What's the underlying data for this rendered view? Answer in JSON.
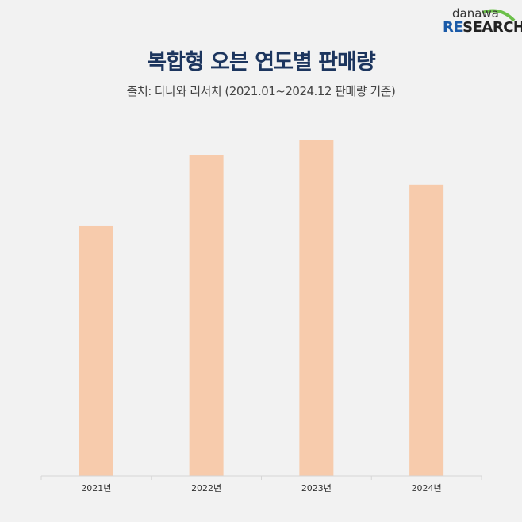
{
  "logo": {
    "top": "danawa",
    "bottom_accent": "RE",
    "bottom_rest": "SEARCH"
  },
  "chart_data": {
    "type": "bar",
    "title": "복합형 오븐 연도별 판매량",
    "subtitle": "출처: 다나와 리서치 (2021.01~2024.12 판매량 기준)",
    "categories": [
      "2021년",
      "2022년",
      "2023년",
      "2024년"
    ],
    "values": [
      74.3,
      95.5,
      100,
      86.6
    ],
    "ylim": [
      0,
      100
    ],
    "grid": false,
    "bar_color": "#f7cbac",
    "title_color": "#1c355e"
  }
}
